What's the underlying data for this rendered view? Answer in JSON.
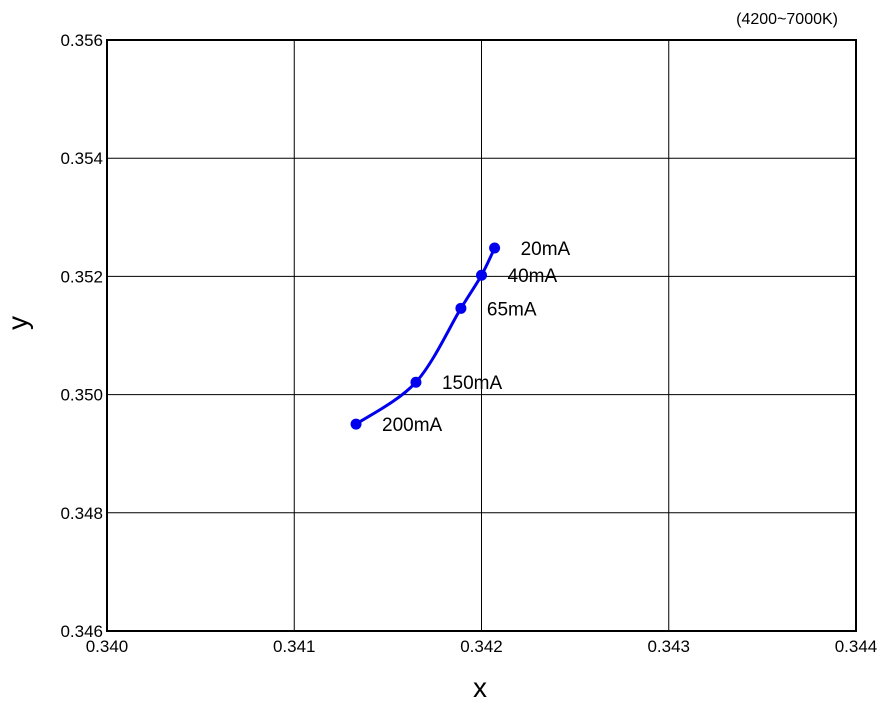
{
  "chart_data": {
    "type": "line",
    "note": "(4200~7000K)",
    "xlabel": "x",
    "ylabel": "y",
    "xlim": [
      0.34,
      0.344
    ],
    "ylim": [
      0.346,
      0.356
    ],
    "xticks": [
      "0.340",
      "0.341",
      "0.342",
      "0.343",
      "0.344"
    ],
    "yticks": [
      "0.346",
      "0.348",
      "0.350",
      "0.352",
      "0.354",
      "0.356"
    ],
    "grid": true,
    "series": [
      {
        "color": "#0000ee",
        "points": [
          {
            "label": "20mA",
            "x": 0.34207,
            "y": 0.35248
          },
          {
            "label": "40mA",
            "x": 0.342,
            "y": 0.35202
          },
          {
            "label": "65mA",
            "x": 0.34189,
            "y": 0.35146
          },
          {
            "label": "150mA",
            "x": 0.34165,
            "y": 0.35021
          },
          {
            "label": "200mA",
            "x": 0.34133,
            "y": 0.3495
          }
        ]
      }
    ]
  }
}
